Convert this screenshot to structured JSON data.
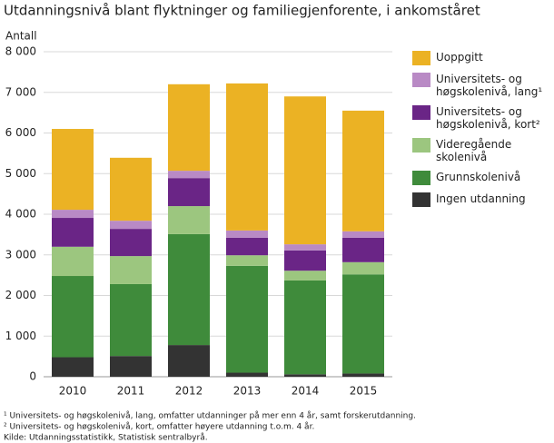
{
  "chart_data": {
    "type": "stacked-bar",
    "title": "Utdanningsnivå blant flyktninger og familiegjenforente, i ankomståret",
    "y_label": "Antall",
    "categories": [
      "2010",
      "2011",
      "2012",
      "2013",
      "2014",
      "2015"
    ],
    "series": [
      {
        "name": "Ingen utdanning",
        "color": "#333333",
        "values": [
          480,
          510,
          780,
          100,
          60,
          80
        ]
      },
      {
        "name": "Grunnskolenivå",
        "color": "#3f8b3b",
        "values": [
          2000,
          1770,
          2730,
          2630,
          2310,
          2440
        ]
      },
      {
        "name": "Videregående skolenivå",
        "color": "#9cc67f",
        "values": [
          720,
          690,
          690,
          260,
          240,
          300
        ]
      },
      {
        "name": "Universitets- og høgskolenivå, kort²",
        "color": "#6a2586",
        "values": [
          710,
          670,
          690,
          430,
          500,
          600
        ]
      },
      {
        "name": "Universitets- og høgskolenivå, lang¹",
        "color": "#b98ac5",
        "values": [
          200,
          200,
          180,
          180,
          150,
          160
        ]
      },
      {
        "name": "Uoppgitt",
        "color": "#ebb224",
        "values": [
          1990,
          1550,
          2130,
          3620,
          3640,
          2970
        ]
      }
    ],
    "ylim": [
      0,
      8000
    ],
    "yticks": [
      0,
      {
        "value": 1000,
        "label": "1 000"
      },
      {
        "value": 2000,
        "label": "2 000"
      },
      {
        "value": 3000,
        "label": "3 000"
      },
      {
        "value": 4000,
        "label": "4 000"
      },
      {
        "value": 5000,
        "label": "5 000"
      },
      {
        "value": 6000,
        "label": "6 000"
      },
      {
        "value": 7000,
        "label": "7 000"
      },
      {
        "value": 8000,
        "label": "8 000"
      }
    ],
    "grid": true,
    "footnotes": [
      "¹ Universitets- og høgskolenivå, lang, omfatter utdanninger på mer enn 4 år, samt forskerutdanning.",
      "² Universitets- og høgskolenivå, kort, omfatter høyere utdanning t.o.m. 4 år.",
      "Kilde: Utdanningsstatistikk, Statistisk sentralbyrå."
    ]
  }
}
